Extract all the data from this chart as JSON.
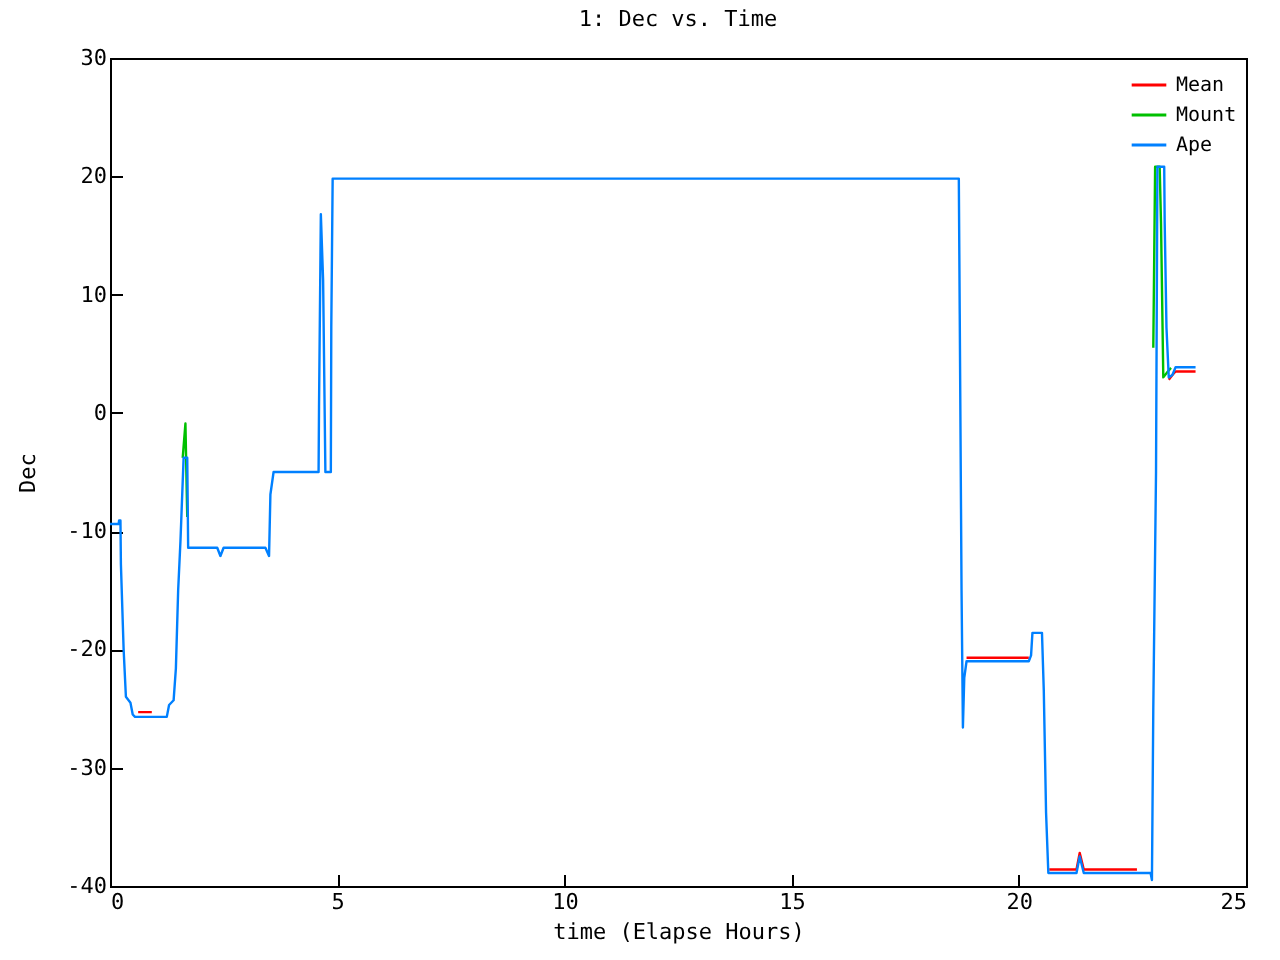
{
  "chart_data": {
    "type": "line",
    "title": "1: Dec vs. Time",
    "xlabel": "time (Elapse Hours)",
    "ylabel": "Dec",
    "xlim": [
      0,
      25
    ],
    "xticks": [
      0,
      5,
      10,
      15,
      20,
      25
    ],
    "ylim": [
      -40,
      30
    ],
    "yticks": [
      -40,
      -30,
      -20,
      -10,
      0,
      10,
      20,
      30
    ],
    "grid": false,
    "legend": "top right",
    "line_style": "solid",
    "series": [
      {
        "name": "Mean",
        "color": "#ff0000",
        "x": [
          0.62,
          0.92,
          5,
          18.85,
          20.22,
          20.4,
          20.67,
          21.27,
          21.34,
          21.43,
          22.6,
          23,
          23.3,
          23.38,
          23.45,
          23.89
        ],
        "values": [
          -25.3,
          -25.3,
          null,
          -20.7,
          -20.7,
          null,
          -38.6,
          -38.6,
          -37.2,
          -38.6,
          -38.6,
          null,
          2.8,
          3.2,
          3.5,
          3.5
        ]
      },
      {
        "name": "Mount",
        "color": "#00c000",
        "x": [
          1.6,
          1.66,
          1.7,
          1.72,
          10,
          22.93,
          22.96,
          23.0,
          23.1,
          23.13,
          23.18,
          23.28,
          23.35
        ],
        "values": [
          -3.8,
          -0.9,
          -8.8,
          null,
          null,
          null,
          5.5,
          20.8,
          20.8,
          16.0,
          3.0,
          3.5,
          3.8
        ]
      },
      {
        "name": "Ape",
        "color": "#0080ff",
        "x": [
          0,
          0.19,
          0.2,
          0.23,
          0.24,
          0.3,
          0.35,
          0.45,
          0.5,
          0.55,
          1.25,
          1.3,
          1.4,
          1.45,
          1.5,
          1.55,
          1.62,
          1.7,
          1.72,
          2.36,
          2.43,
          2.5,
          3.42,
          3.5,
          3.53,
          3.6,
          4.59,
          4.6,
          4.64,
          4.69,
          4.74,
          4.86,
          4.87,
          4.9,
          18.68,
          18.7,
          18.74,
          18.77,
          18.8,
          18.85,
          20.22,
          20.27,
          20.3,
          20.51,
          20.55,
          20.6,
          20.65,
          21.27,
          21.34,
          21.43,
          22.9,
          22.93,
          22.96,
          23.02,
          23.05,
          23.2,
          23.21,
          23.25,
          23.3,
          23.38,
          23.45,
          23.89
        ],
        "values": [
          -9.4,
          -9.4,
          -9.1,
          -9.1,
          -12.8,
          -20,
          -24,
          -24.5,
          -25.5,
          -25.7,
          -25.7,
          -24.7,
          -24.3,
          -21.6,
          -15,
          -10.9,
          -3.8,
          -3.8,
          -11.4,
          -11.4,
          -12.1,
          -11.4,
          -11.4,
          -12.1,
          -6.9,
          -5.0,
          -5.0,
          0.5,
          16.8,
          11.2,
          -5.0,
          -5.0,
          7.3,
          19.8,
          19.8,
          8.4,
          -15,
          -26.6,
          -22.4,
          -21.0,
          -21.0,
          -20.5,
          -18.6,
          -18.6,
          -23.5,
          -33.8,
          -38.9,
          -38.9,
          -37.5,
          -38.9,
          -38.9,
          -39.5,
          -24.9,
          -5,
          20.8,
          20.8,
          16.2,
          7.2,
          3.0,
          3.2,
          3.85,
          3.85
        ]
      }
    ]
  }
}
